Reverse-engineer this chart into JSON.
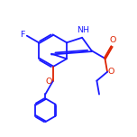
{
  "bg_color": "#ffffff",
  "bond_color": "#1a1aff",
  "oxygen_color": "#dd2200",
  "line_width": 1.3,
  "doffset": 0.055,
  "bl": 1.18,
  "xlim": [
    0,
    10
  ],
  "ylim": [
    0,
    10
  ]
}
